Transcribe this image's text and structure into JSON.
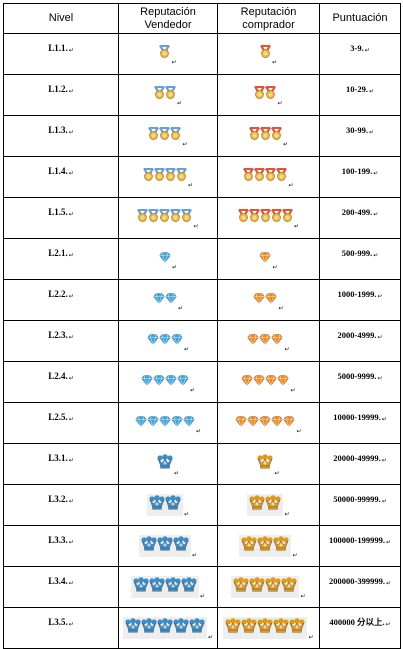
{
  "headers": {
    "nivel": "Nivel",
    "seller_line1": "Reputación",
    "seller_line2": "Vendedor",
    "buyer_line1": "Reputación",
    "buyer_line2": "comprador",
    "puntuacion": "Puntuación"
  },
  "mark_glyph": "↵",
  "rows": [
    {
      "level": "L1.1.",
      "points": "3-9.",
      "icon": "medal",
      "count": 1
    },
    {
      "level": "L1.2.",
      "points": "10-29.",
      "icon": "medal",
      "count": 2
    },
    {
      "level": "L1.3.",
      "points": "30-99.",
      "icon": "medal",
      "count": 3
    },
    {
      "level": "L1.4.",
      "points": "100-199.",
      "icon": "medal",
      "count": 4
    },
    {
      "level": "L1.5.",
      "points": "200-499.",
      "icon": "medal",
      "count": 5
    },
    {
      "level": "L2.1.",
      "points": "500-999.",
      "icon": "diamond",
      "count": 1
    },
    {
      "level": "L2.2.",
      "points": "1000-1999.",
      "icon": "diamond",
      "count": 2
    },
    {
      "level": "L2.3.",
      "points": "2000-4999.",
      "icon": "diamond",
      "count": 3
    },
    {
      "level": "L2.4.",
      "points": "5000-9999.",
      "icon": "diamond",
      "count": 4
    },
    {
      "level": "L2.5.",
      "points": "10000-19999.",
      "icon": "diamond",
      "count": 5
    },
    {
      "level": "L3.1.",
      "points": "20000-49999.",
      "icon": "crown",
      "count": 1
    },
    {
      "level": "L3.2.",
      "points": "50000-99999.",
      "icon": "crown",
      "count": 2
    },
    {
      "level": "L3.3.",
      "points": "100000-199999.",
      "icon": "crown",
      "count": 3
    },
    {
      "level": "L3.4.",
      "points": "200000-399999.",
      "icon": "crown",
      "count": 4
    },
    {
      "level": "L3.5.",
      "points": "400000 分以上.",
      "icon": "crown",
      "count": 5
    }
  ],
  "colors": {
    "seller_medal_ribbon": "#6a9fd6",
    "buyer_medal_ribbon": "#e0553a",
    "medal_gold": "#e8b84a",
    "seller_diamond": "#3aa6e0",
    "buyer_diamond": "#f08a1c",
    "seller_crown": "#3c8cc8",
    "buyer_crown": "#e09a1a"
  }
}
